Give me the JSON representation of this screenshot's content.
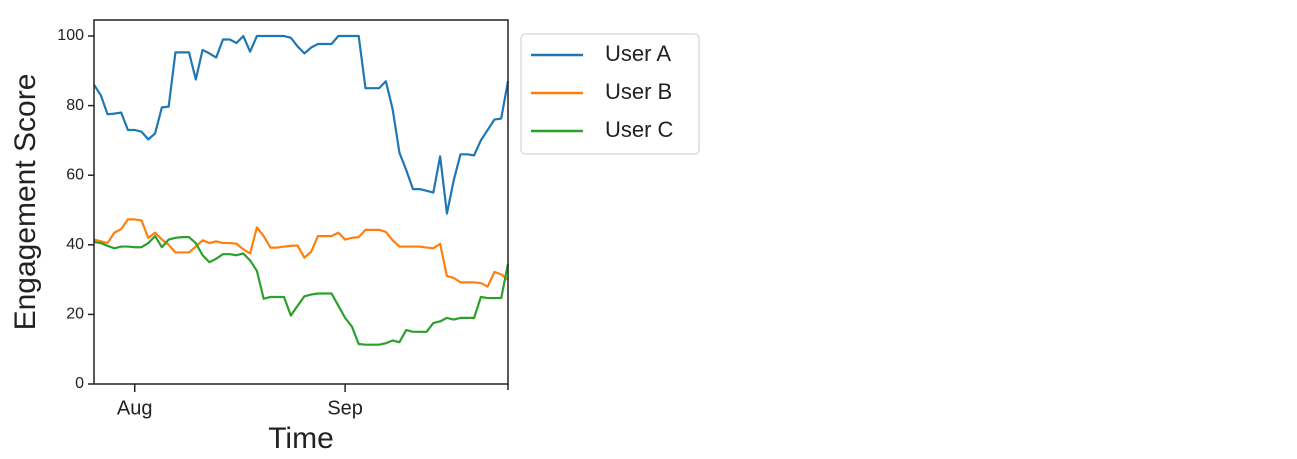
{
  "chart_data": {
    "type": "line",
    "x_label": "Time",
    "y_label": "Engagement Score",
    "categories": [
      null,
      null,
      null,
      null,
      null,
      null,
      "Aug",
      null,
      null,
      null,
      null,
      null,
      null,
      null,
      null,
      null,
      null,
      null,
      null,
      null,
      null,
      null,
      null,
      null,
      null,
      null,
      null,
      null,
      null,
      null,
      null,
      null,
      null,
      null,
      null,
      null,
      null,
      "Sep",
      null,
      null,
      null,
      null,
      null,
      null,
      null,
      null,
      null,
      null,
      null,
      null,
      null,
      null,
      null,
      null,
      null,
      null,
      null,
      null,
      null,
      null,
      null,
      null
    ],
    "series": [
      {
        "name": "User A",
        "color": "#1f77b4",
        "values": [
          86,
          83,
          77.5,
          77.7,
          78,
          73,
          73,
          72.5,
          70.3,
          72,
          79.5,
          79.7,
          95.3,
          95.3,
          95.3,
          87.5,
          96,
          95,
          93.8,
          99,
          99,
          98,
          100,
          95.5,
          100,
          100,
          100,
          100,
          100,
          99.5,
          97,
          95,
          96.7,
          97.7,
          97.7,
          97.7,
          100,
          100,
          100,
          100,
          85,
          85,
          85,
          87,
          79,
          66.5,
          61.5,
          56,
          56,
          55.5,
          55,
          65.4,
          49,
          58.5,
          66,
          66,
          65.7,
          70,
          73,
          76,
          76.3,
          87
        ]
      },
      {
        "name": "User B",
        "color": "#ff7f0e",
        "values": [
          41.5,
          41,
          40.5,
          43.5,
          44.5,
          47.3,
          47.3,
          47,
          42,
          43.5,
          41.5,
          40,
          37.8,
          37.8,
          37.8,
          39.5,
          41.3,
          40.5,
          41,
          40.5,
          40.5,
          40.3,
          38.7,
          37.5,
          45,
          42.5,
          39.2,
          39.2,
          39.5,
          39.7,
          39.8,
          36.3,
          38,
          42.5,
          42.5,
          42.5,
          43.5,
          41.5,
          42,
          42.2,
          44.3,
          44.3,
          44.3,
          43.7,
          41.3,
          39.5,
          39.5,
          39.5,
          39.5,
          39.2,
          39,
          40.3,
          31,
          30.5,
          29.2,
          29.2,
          29.2,
          29,
          28,
          32.2,
          31.5,
          30
        ]
      },
      {
        "name": "User C",
        "color": "#2ca02c",
        "values": [
          40.8,
          40.5,
          39.7,
          39,
          39.5,
          39.5,
          39.3,
          39.3,
          40.5,
          42.5,
          39.3,
          41.5,
          42,
          42.2,
          42.2,
          40.5,
          37,
          35,
          36,
          37.3,
          37.3,
          37,
          37.5,
          35.5,
          32.5,
          24.5,
          25,
          25,
          25,
          19.7,
          22.5,
          25.2,
          25.7,
          26,
          26,
          26,
          22.5,
          19,
          16.5,
          11.5,
          11.3,
          11.3,
          11.3,
          11.7,
          12.5,
          12,
          15.5,
          15,
          15,
          15,
          17.5,
          18,
          19,
          18.5,
          19,
          19,
          19,
          25,
          24.7,
          24.7,
          24.7,
          34.5
        ]
      }
    ],
    "ylim": [
      0,
      104.6
    ],
    "yticks": [
      0,
      20,
      40,
      60,
      80,
      100
    ],
    "legend": "outside right"
  }
}
